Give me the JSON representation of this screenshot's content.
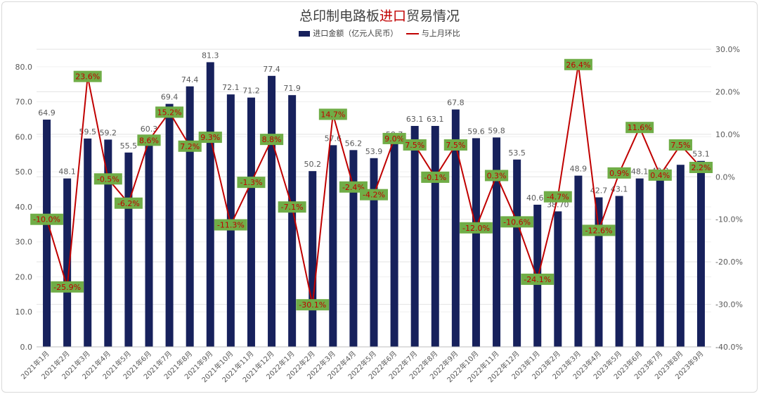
{
  "title": {
    "part1": "总印制电路板",
    "highlight": "进口",
    "part2": "贸易情况"
  },
  "colors": {
    "bar": "#17215c",
    "line": "#c00000",
    "label_bg": "#70ad47",
    "grid": "#e3e3e3",
    "text": "#595959",
    "pct_text": "#c00000"
  },
  "chart_data": {
    "type": "bar",
    "title": "总印制电路板进口贸易情况",
    "categories": [
      "2021年1月",
      "2021年2月",
      "2021年3月",
      "2021年4月",
      "2021年5月",
      "2021年6月",
      "2021年7月",
      "2021年8月",
      "2021年9月",
      "2021年10月",
      "2021年11月",
      "2021年12月",
      "2022年1月",
      "2022年2月",
      "2022年3月",
      "2022年4月",
      "2022年5月",
      "2022年6月",
      "2022年7月",
      "2022年8月",
      "2022年9月",
      "2022年10月",
      "2022年11月",
      "2022年12月",
      "2023年1月",
      "2023年2月",
      "2023年3月",
      "2023年4月",
      "2023年5月",
      "2023年6月",
      "2023年7月",
      "2023年8月",
      "2023年9月"
    ],
    "series": [
      {
        "name": "进口金额（亿元人民币）",
        "type": "bar",
        "axis": "left",
        "values": [
          64.9,
          48.1,
          59.5,
          59.2,
          55.5,
          60.3,
          69.4,
          74.4,
          81.3,
          72.1,
          71.2,
          77.4,
          71.9,
          50.2,
          57.6,
          56.2,
          53.9,
          58.7,
          63.1,
          63.1,
          67.8,
          59.6,
          59.8,
          53.5,
          40.6,
          38.7,
          48.9,
          42.7,
          43.1,
          48.1,
          48.3,
          52.0,
          53.1
        ],
        "labels": [
          "64.9",
          "48.1",
          "59.5",
          "59.2",
          "55.5",
          "60.3",
          "69.4",
          "74.4",
          "81.3",
          "72.1",
          "71.2",
          "77.4",
          "71.9",
          "50.2",
          "57.6",
          "56.2",
          "53.9",
          "58.7",
          "63.1",
          "63.1",
          "67.8",
          "59.6",
          "59.8",
          "53.5",
          "40.60",
          "38.70",
          "48.9",
          "42.7",
          "43.1",
          "48.1",
          "48.3",
          "",
          "53.1"
        ]
      },
      {
        "name": "与上月环比",
        "type": "line",
        "axis": "right",
        "values": [
          -10.0,
          -25.9,
          23.6,
          -0.5,
          -6.2,
          8.6,
          15.2,
          7.2,
          9.3,
          -11.3,
          -1.3,
          8.8,
          -7.1,
          -30.1,
          14.7,
          -2.4,
          -4.2,
          9.0,
          7.5,
          -0.1,
          7.5,
          -12.0,
          0.3,
          -10.6,
          -24.1,
          -4.7,
          26.4,
          -12.6,
          0.9,
          11.6,
          0.4,
          7.5,
          2.2
        ],
        "labels": [
          "-10.0%",
          "-25.9%",
          "23.6%",
          "-0.5%",
          "-6.2%",
          "8.6%",
          "15.2%",
          "7.2%",
          "9.3%",
          "-11.3%",
          "-1.3%",
          "8.8%",
          "-7.1%",
          "-30.1%",
          "14.7%",
          "-2.4%",
          "-4.2%",
          "9.0%",
          "7.5%",
          "-0.1%",
          "7.5%",
          "-12.0%",
          "0.3%",
          "-10.6%",
          "-24.1%",
          "-4.7%",
          "26.4%",
          "-12.6%",
          "0.9%",
          "11.6%",
          "0.4%",
          "7.5%",
          "2.2%"
        ]
      }
    ],
    "y_left": {
      "range": [
        0,
        85
      ],
      "ticks": [
        "0.0",
        "10.0",
        "20.0",
        "30.0",
        "40.0",
        "50.0",
        "60.0",
        "70.0",
        "80.0"
      ],
      "tick_values": [
        0,
        10,
        20,
        30,
        40,
        50,
        60,
        70,
        80
      ]
    },
    "y_right": {
      "range": [
        -40,
        30
      ],
      "ticks": [
        "-40.0%",
        "-30.0%",
        "-20.0%",
        "-10.0%",
        "0.0%",
        "10.0%",
        "20.0%",
        "30.0%"
      ],
      "tick_values": [
        -40,
        -30,
        -20,
        -10,
        0,
        10,
        20,
        30
      ]
    },
    "grid": true,
    "legend_position": "top"
  }
}
